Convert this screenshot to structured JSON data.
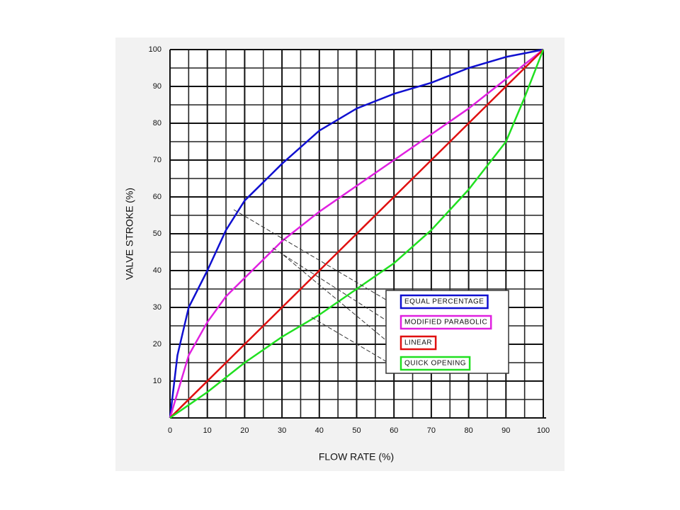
{
  "chart_data": {
    "type": "line",
    "xlabel": "FLOW RATE (%)",
    "ylabel": "VALVE STROKE (%)",
    "xlim": [
      0,
      100
    ],
    "ylim": [
      0,
      100
    ],
    "xticks": [
      0,
      10,
      20,
      30,
      40,
      50,
      60,
      70,
      80,
      90,
      100
    ],
    "yticks": [
      10,
      20,
      30,
      40,
      50,
      60,
      70,
      80,
      90,
      100
    ],
    "grid": true,
    "series": [
      {
        "name": "EQUAL PERCENTAGE",
        "color": "#1010d0",
        "x": [
          0,
          2,
          5,
          10,
          15,
          20,
          25,
          30,
          40,
          50,
          60,
          70,
          80,
          90,
          100
        ],
        "values": [
          0,
          17,
          30,
          40,
          51,
          59,
          64,
          69,
          78,
          84,
          88,
          91,
          95,
          98,
          100
        ]
      },
      {
        "name": "MODIFIED PARABOLIC",
        "color": "#e020e0",
        "x": [
          0,
          5,
          10,
          15,
          20,
          30,
          40,
          50,
          60,
          70,
          80,
          90,
          100
        ],
        "values": [
          0,
          17,
          26,
          33,
          38,
          48,
          56,
          63,
          70,
          77,
          84,
          92,
          100
        ]
      },
      {
        "name": "LINEAR",
        "color": "#e01010",
        "x": [
          0,
          100
        ],
        "values": [
          0,
          100
        ]
      },
      {
        "name": "QUICK OPENING",
        "color": "#20e020",
        "x": [
          0,
          10,
          20,
          30,
          40,
          50,
          60,
          70,
          80,
          90,
          95,
          100
        ],
        "values": [
          0,
          7,
          15,
          22,
          28,
          35,
          42,
          51,
          62,
          75,
          87,
          100
        ]
      }
    ]
  }
}
